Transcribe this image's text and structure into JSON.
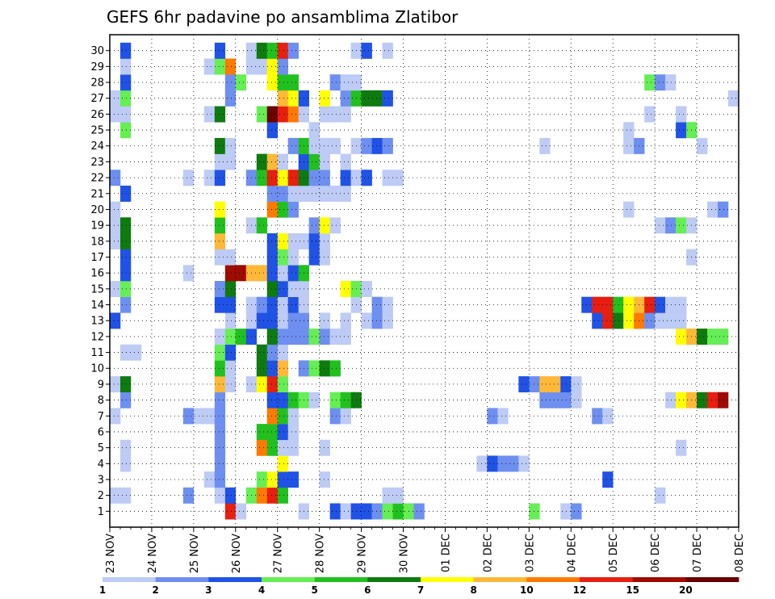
{
  "chart_data": {
    "type": "heatmap",
    "title": "GEFS 6hr padavine po ansamblima Zlatibor",
    "xlabel": "",
    "ylabel": "",
    "x_tick_labels": [
      "23 NOV",
      "24 NOV",
      "25 NOV",
      "26 NOV",
      "27 NOV",
      "28 NOV",
      "29 NOV",
      "30 NOV",
      "01 DEC",
      "02 DEC",
      "03 DEC",
      "04 DEC",
      "05 DEC",
      "06 DEC",
      "07 DEC",
      "08 DEC"
    ],
    "y_tick_labels": [
      "1",
      "2",
      "3",
      "4",
      "5",
      "6",
      "7",
      "8",
      "9",
      "10",
      "11",
      "12",
      "13",
      "14",
      "15",
      "16",
      "17",
      "18",
      "19",
      "20",
      "21",
      "22",
      "23",
      "24",
      "25",
      "26",
      "27",
      "28",
      "29",
      "30"
    ],
    "time_steps_per_day": 4,
    "n_time_steps": 60,
    "grid": "dotted",
    "colorbar": {
      "tick_labels": [
        "1",
        "2",
        "3",
        "4",
        "5",
        "6",
        "7",
        "8",
        "10",
        "12",
        "15",
        "20"
      ],
      "colors": [
        "#bdcbf5",
        "#6e8ff0",
        "#2052e6",
        "#66ee55",
        "#22c01f",
        "#0f7a10",
        "#ffff00",
        "#ffb838",
        "#ff7a00",
        "#e61f10",
        "#9e0c00",
        "#6a0000"
      ]
    },
    "cells": [
      [
        1,
        12,
        10
      ],
      [
        1,
        13,
        1
      ],
      [
        1,
        19,
        1
      ],
      [
        1,
        22,
        3
      ],
      [
        1,
        23,
        1
      ],
      [
        1,
        24,
        3
      ],
      [
        1,
        25,
        3
      ],
      [
        1,
        26,
        2
      ],
      [
        1,
        27,
        4
      ],
      [
        1,
        28,
        5
      ],
      [
        1,
        29,
        4
      ],
      [
        1,
        30,
        2
      ],
      [
        1,
        41,
        4
      ],
      [
        1,
        44,
        1
      ],
      [
        1,
        45,
        2
      ],
      [
        2,
        1,
        1
      ],
      [
        2,
        2,
        1
      ],
      [
        2,
        8,
        2
      ],
      [
        2,
        11,
        1
      ],
      [
        2,
        12,
        3
      ],
      [
        2,
        14,
        4
      ],
      [
        2,
        15,
        9
      ],
      [
        2,
        16,
        10
      ],
      [
        2,
        17,
        5
      ],
      [
        2,
        27,
        1
      ],
      [
        2,
        28,
        1
      ],
      [
        2,
        53,
        1
      ],
      [
        3,
        10,
        1
      ],
      [
        3,
        11,
        2
      ],
      [
        3,
        15,
        4
      ],
      [
        3,
        16,
        7
      ],
      [
        3,
        17,
        3
      ],
      [
        3,
        18,
        3
      ],
      [
        3,
        21,
        1
      ],
      [
        3,
        48,
        3
      ],
      [
        4,
        2,
        1
      ],
      [
        4,
        11,
        2
      ],
      [
        4,
        17,
        7
      ],
      [
        4,
        36,
        1
      ],
      [
        4,
        37,
        3
      ],
      [
        4,
        38,
        2
      ],
      [
        4,
        39,
        2
      ],
      [
        4,
        40,
        1
      ],
      [
        5,
        2,
        1
      ],
      [
        5,
        11,
        2
      ],
      [
        5,
        15,
        9
      ],
      [
        5,
        16,
        5
      ],
      [
        5,
        17,
        1
      ],
      [
        5,
        18,
        1
      ],
      [
        5,
        21,
        1
      ],
      [
        5,
        55,
        1
      ],
      [
        6,
        11,
        2
      ],
      [
        6,
        15,
        5
      ],
      [
        6,
        16,
        5
      ],
      [
        6,
        17,
        3
      ],
      [
        6,
        18,
        1
      ],
      [
        7,
        1,
        1
      ],
      [
        7,
        8,
        2
      ],
      [
        7,
        9,
        1
      ],
      [
        7,
        10,
        1
      ],
      [
        7,
        11,
        2
      ],
      [
        7,
        16,
        9
      ],
      [
        7,
        17,
        5
      ],
      [
        7,
        18,
        1
      ],
      [
        7,
        22,
        2
      ],
      [
        7,
        23,
        1
      ],
      [
        7,
        37,
        2
      ],
      [
        7,
        38,
        1
      ],
      [
        7,
        47,
        2
      ],
      [
        7,
        48,
        1
      ],
      [
        8,
        2,
        2
      ],
      [
        8,
        11,
        2
      ],
      [
        8,
        16,
        3
      ],
      [
        8,
        17,
        3
      ],
      [
        8,
        18,
        5
      ],
      [
        8,
        19,
        4
      ],
      [
        8,
        20,
        1
      ],
      [
        8,
        22,
        4
      ],
      [
        8,
        23,
        5
      ],
      [
        8,
        24,
        6
      ],
      [
        8,
        42,
        2
      ],
      [
        8,
        43,
        2
      ],
      [
        8,
        44,
        2
      ],
      [
        8,
        45,
        1
      ],
      [
        8,
        54,
        1
      ],
      [
        8,
        55,
        7
      ],
      [
        8,
        56,
        8
      ],
      [
        8,
        57,
        6
      ],
      [
        8,
        58,
        10
      ],
      [
        8,
        59,
        11
      ],
      [
        9,
        1,
        1
      ],
      [
        9,
        2,
        6
      ],
      [
        9,
        11,
        8
      ],
      [
        9,
        12,
        1
      ],
      [
        9,
        14,
        1
      ],
      [
        9,
        15,
        7
      ],
      [
        9,
        16,
        10
      ],
      [
        9,
        17,
        4
      ],
      [
        9,
        40,
        3
      ],
      [
        9,
        41,
        2
      ],
      [
        9,
        42,
        8
      ],
      [
        9,
        43,
        8
      ],
      [
        9,
        44,
        3
      ],
      [
        9,
        45,
        1
      ],
      [
        10,
        11,
        5
      ],
      [
        10,
        12,
        1
      ],
      [
        10,
        15,
        6
      ],
      [
        10,
        16,
        3
      ],
      [
        10,
        17,
        8
      ],
      [
        10,
        19,
        2
      ],
      [
        10,
        20,
        4
      ],
      [
        10,
        21,
        6
      ],
      [
        10,
        22,
        5
      ],
      [
        11,
        2,
        1
      ],
      [
        11,
        3,
        1
      ],
      [
        11,
        11,
        4
      ],
      [
        11,
        12,
        3
      ],
      [
        11,
        15,
        6
      ],
      [
        11,
        16,
        2
      ],
      [
        11,
        17,
        1
      ],
      [
        12,
        11,
        1
      ],
      [
        12,
        12,
        4
      ],
      [
        12,
        13,
        5
      ],
      [
        12,
        14,
        3
      ],
      [
        12,
        16,
        6
      ],
      [
        12,
        17,
        2
      ],
      [
        12,
        18,
        2
      ],
      [
        12,
        19,
        2
      ],
      [
        12,
        20,
        4
      ],
      [
        12,
        21,
        2
      ],
      [
        12,
        22,
        1
      ],
      [
        12,
        23,
        1
      ],
      [
        12,
        55,
        7
      ],
      [
        12,
        56,
        8
      ],
      [
        12,
        57,
        6
      ],
      [
        12,
        58,
        4
      ],
      [
        12,
        59,
        4
      ],
      [
        13,
        1,
        3
      ],
      [
        13,
        12,
        1
      ],
      [
        13,
        14,
        1
      ],
      [
        13,
        15,
        3
      ],
      [
        13,
        16,
        3
      ],
      [
        13,
        17,
        1
      ],
      [
        13,
        18,
        2
      ],
      [
        13,
        19,
        2
      ],
      [
        13,
        21,
        1
      ],
      [
        13,
        23,
        1
      ],
      [
        13,
        25,
        1
      ],
      [
        13,
        26,
        2
      ],
      [
        13,
        27,
        1
      ],
      [
        13,
        47,
        3
      ],
      [
        13,
        48,
        10
      ],
      [
        13,
        49,
        6
      ],
      [
        13,
        50,
        7
      ],
      [
        13,
        51,
        9
      ],
      [
        13,
        52,
        2
      ],
      [
        13,
        53,
        1
      ],
      [
        13,
        54,
        1
      ],
      [
        13,
        55,
        1
      ],
      [
        14,
        2,
        2
      ],
      [
        14,
        11,
        3
      ],
      [
        14,
        12,
        3
      ],
      [
        14,
        14,
        1
      ],
      [
        14,
        15,
        2
      ],
      [
        14,
        16,
        3
      ],
      [
        14,
        17,
        1
      ],
      [
        14,
        18,
        3
      ],
      [
        14,
        19,
        1
      ],
      [
        14,
        24,
        1
      ],
      [
        14,
        26,
        2
      ],
      [
        14,
        27,
        1
      ],
      [
        14,
        46,
        3
      ],
      [
        14,
        47,
        10
      ],
      [
        14,
        48,
        10
      ],
      [
        14,
        49,
        5
      ],
      [
        14,
        50,
        7
      ],
      [
        14,
        51,
        8
      ],
      [
        14,
        52,
        10
      ],
      [
        14,
        53,
        3
      ],
      [
        14,
        54,
        1
      ],
      [
        14,
        55,
        1
      ],
      [
        15,
        1,
        1
      ],
      [
        15,
        2,
        4
      ],
      [
        15,
        11,
        2
      ],
      [
        15,
        12,
        6
      ],
      [
        15,
        16,
        6
      ],
      [
        15,
        17,
        3
      ],
      [
        15,
        18,
        1
      ],
      [
        15,
        19,
        1
      ],
      [
        15,
        23,
        7
      ],
      [
        15,
        24,
        4
      ],
      [
        15,
        25,
        1
      ],
      [
        16,
        2,
        3
      ],
      [
        16,
        8,
        1
      ],
      [
        16,
        12,
        11
      ],
      [
        16,
        13,
        11
      ],
      [
        16,
        14,
        8
      ],
      [
        16,
        15,
        8
      ],
      [
        16,
        16,
        3
      ],
      [
        16,
        17,
        1
      ],
      [
        16,
        18,
        3
      ],
      [
        16,
        19,
        5
      ],
      [
        17,
        2,
        3
      ],
      [
        17,
        11,
        1
      ],
      [
        17,
        12,
        1
      ],
      [
        17,
        16,
        3
      ],
      [
        17,
        17,
        4
      ],
      [
        17,
        18,
        1
      ],
      [
        17,
        20,
        3
      ],
      [
        17,
        21,
        1
      ],
      [
        17,
        56,
        1
      ],
      [
        18,
        1,
        1
      ],
      [
        18,
        2,
        6
      ],
      [
        18,
        11,
        8
      ],
      [
        18,
        16,
        3
      ],
      [
        18,
        17,
        7
      ],
      [
        18,
        18,
        1
      ],
      [
        18,
        19,
        1
      ],
      [
        18,
        20,
        3
      ],
      [
        18,
        21,
        1
      ],
      [
        19,
        1,
        1
      ],
      [
        19,
        2,
        6
      ],
      [
        19,
        11,
        5
      ],
      [
        19,
        14,
        1
      ],
      [
        19,
        15,
        5
      ],
      [
        19,
        20,
        2
      ],
      [
        19,
        21,
        7
      ],
      [
        19,
        22,
        1
      ],
      [
        19,
        53,
        1
      ],
      [
        19,
        54,
        2
      ],
      [
        19,
        55,
        4
      ],
      [
        19,
        56,
        1
      ],
      [
        20,
        1,
        1
      ],
      [
        20,
        11,
        7
      ],
      [
        20,
        16,
        9
      ],
      [
        20,
        17,
        5
      ],
      [
        20,
        18,
        2
      ],
      [
        20,
        50,
        1
      ],
      [
        20,
        58,
        1
      ],
      [
        20,
        59,
        2
      ],
      [
        21,
        2,
        3
      ],
      [
        21,
        16,
        2
      ],
      [
        21,
        17,
        2
      ],
      [
        21,
        18,
        1
      ],
      [
        21,
        19,
        1
      ],
      [
        21,
        20,
        1
      ],
      [
        21,
        21,
        1
      ],
      [
        21,
        22,
        1
      ],
      [
        21,
        23,
        1
      ],
      [
        22,
        1,
        2
      ],
      [
        22,
        8,
        1
      ],
      [
        22,
        10,
        1
      ],
      [
        22,
        11,
        3
      ],
      [
        22,
        14,
        2
      ],
      [
        22,
        15,
        5
      ],
      [
        22,
        16,
        10
      ],
      [
        22,
        17,
        7
      ],
      [
        22,
        18,
        10
      ],
      [
        22,
        19,
        6
      ],
      [
        22,
        20,
        2
      ],
      [
        22,
        21,
        2
      ],
      [
        22,
        23,
        3
      ],
      [
        22,
        24,
        1
      ],
      [
        22,
        25,
        3
      ],
      [
        22,
        27,
        1
      ],
      [
        22,
        28,
        1
      ],
      [
        23,
        11,
        1
      ],
      [
        23,
        12,
        1
      ],
      [
        23,
        15,
        6
      ],
      [
        23,
        16,
        8
      ],
      [
        23,
        17,
        1
      ],
      [
        23,
        19,
        3
      ],
      [
        23,
        20,
        5
      ],
      [
        23,
        21,
        1
      ],
      [
        23,
        23,
        1
      ],
      [
        24,
        11,
        6
      ],
      [
        24,
        12,
        1
      ],
      [
        24,
        18,
        2
      ],
      [
        24,
        19,
        5
      ],
      [
        24,
        20,
        1
      ],
      [
        24,
        21,
        1
      ],
      [
        24,
        22,
        1
      ],
      [
        24,
        24,
        1
      ],
      [
        24,
        25,
        2
      ],
      [
        24,
        26,
        3
      ],
      [
        24,
        27,
        2
      ],
      [
        24,
        42,
        1
      ],
      [
        24,
        50,
        1
      ],
      [
        24,
        51,
        2
      ],
      [
        24,
        57,
        1
      ],
      [
        25,
        2,
        4
      ],
      [
        25,
        16,
        3
      ],
      [
        25,
        20,
        1
      ],
      [
        25,
        50,
        1
      ],
      [
        25,
        55,
        3
      ],
      [
        25,
        56,
        4
      ],
      [
        26,
        1,
        1
      ],
      [
        26,
        2,
        1
      ],
      [
        26,
        10,
        1
      ],
      [
        26,
        11,
        6
      ],
      [
        26,
        15,
        4
      ],
      [
        26,
        16,
        12
      ],
      [
        26,
        17,
        10
      ],
      [
        26,
        18,
        9
      ],
      [
        26,
        19,
        1
      ],
      [
        26,
        21,
        1
      ],
      [
        26,
        22,
        1
      ],
      [
        26,
        23,
        1
      ],
      [
        26,
        52,
        1
      ],
      [
        26,
        55,
        1
      ],
      [
        27,
        1,
        1
      ],
      [
        27,
        2,
        4
      ],
      [
        27,
        12,
        2
      ],
      [
        27,
        17,
        8
      ],
      [
        27,
        18,
        7
      ],
      [
        27,
        19,
        3
      ],
      [
        27,
        21,
        7
      ],
      [
        27,
        23,
        2
      ],
      [
        27,
        24,
        5
      ],
      [
        27,
        25,
        6
      ],
      [
        27,
        26,
        6
      ],
      [
        27,
        27,
        3
      ],
      [
        27,
        60,
        1
      ],
      [
        28,
        2,
        3
      ],
      [
        28,
        12,
        2
      ],
      [
        28,
        13,
        4
      ],
      [
        28,
        16,
        7
      ],
      [
        28,
        17,
        5
      ],
      [
        28,
        18,
        5
      ],
      [
        28,
        22,
        2
      ],
      [
        28,
        23,
        1
      ],
      [
        28,
        24,
        1
      ],
      [
        28,
        52,
        4
      ],
      [
        28,
        53,
        2
      ],
      [
        28,
        54,
        1
      ],
      [
        29,
        2,
        1
      ],
      [
        29,
        10,
        1
      ],
      [
        29,
        11,
        4
      ],
      [
        29,
        12,
        9
      ],
      [
        29,
        14,
        1
      ],
      [
        29,
        15,
        1
      ],
      [
        29,
        16,
        7
      ],
      [
        29,
        17,
        2
      ],
      [
        30,
        2,
        3
      ],
      [
        30,
        11,
        3
      ],
      [
        30,
        14,
        1
      ],
      [
        30,
        15,
        6
      ],
      [
        30,
        16,
        5
      ],
      [
        30,
        17,
        10
      ],
      [
        30,
        18,
        2
      ],
      [
        30,
        24,
        1
      ],
      [
        30,
        25,
        3
      ],
      [
        30,
        27,
        1
      ]
    ]
  }
}
